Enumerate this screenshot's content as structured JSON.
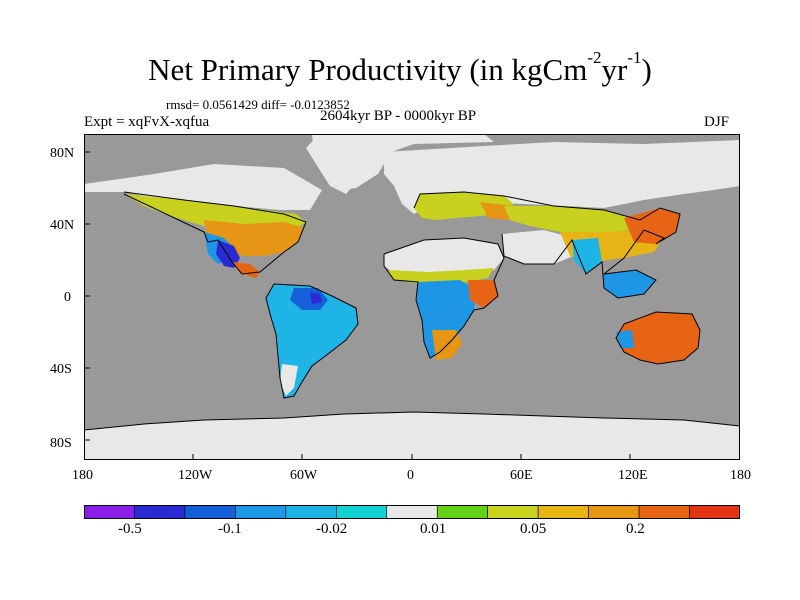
{
  "title": {
    "main": "Net Primary Productivity (in kgCm",
    "sup1": "-2",
    "mid": "yr",
    "sup2": "-1",
    "close": ")"
  },
  "stats": "rmsd= 0.0561429 diff= -0.0123852",
  "experiment": "Expt = xqFvX-xqfua",
  "period": "2604kyr BP - 0000kyr BP",
  "season": "DJF",
  "lat_labels": [
    "80N",
    "40N",
    "0",
    "40S",
    "80S"
  ],
  "lon_labels": [
    "180",
    "120W",
    "60W",
    "0",
    "60E",
    "120E",
    "180"
  ],
  "colorbar": {
    "colors": [
      "#8a1ee6",
      "#2a2ad2",
      "#1560d8",
      "#1e96e6",
      "#1eb4e6",
      "#14d2d2",
      "#e8e8e8",
      "#64d214",
      "#c8d21e",
      "#e6b414",
      "#e69614",
      "#e66414",
      "#e63214"
    ],
    "labels": [
      "-0.5",
      "-0.1",
      "-0.02",
      "0.01",
      "0.05",
      "0.2"
    ]
  },
  "colors": {
    "ocean": "#999999",
    "land_zero": "#e8e8e8",
    "coast": "#000000"
  }
}
